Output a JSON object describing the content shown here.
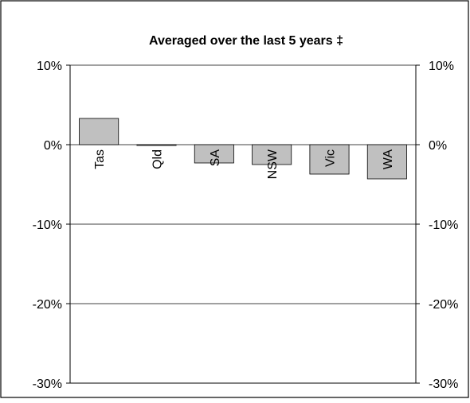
{
  "chart_data": {
    "type": "bar",
    "title": "Averaged over the last 5 years ‡",
    "categories": [
      "Tas",
      "Qld",
      "SA",
      "NSW",
      "Vic",
      "WA"
    ],
    "values": [
      3.3,
      -0.1,
      -2.3,
      -2.5,
      -3.7,
      -4.3
    ],
    "ylim": [
      -30,
      10
    ],
    "yticks": [
      10,
      0,
      -10,
      -20,
      -30
    ],
    "ytick_labels": [
      "10%",
      "0%",
      "-10%",
      "-20%",
      "-30%"
    ],
    "grid": true,
    "legend": "none",
    "colors": {
      "bar_fill": "#c0c0c0",
      "bar_stroke": "#000000",
      "grid": "#000000",
      "frame": "#000000"
    }
  }
}
